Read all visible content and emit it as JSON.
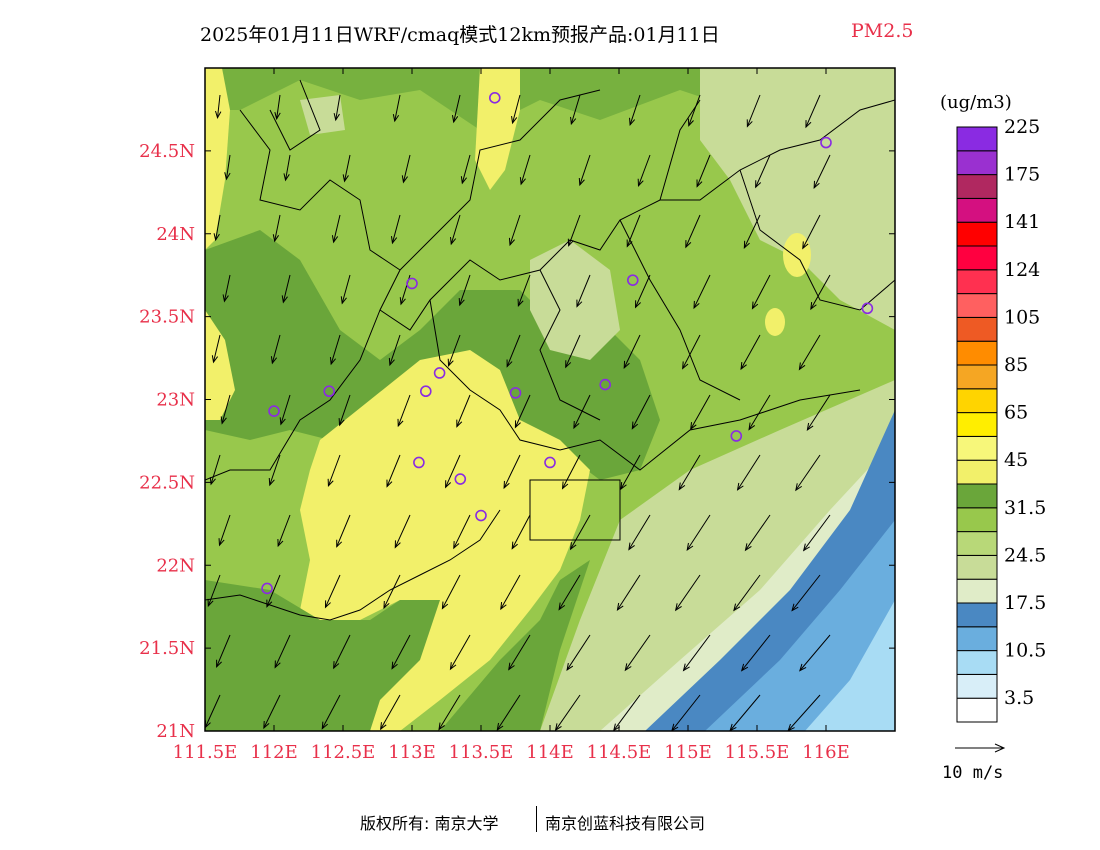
{
  "title": {
    "main": "2025年01月11日WRF/cmaq模式12km预报产品:01月11日",
    "pollutant": "PM2.5"
  },
  "map": {
    "lon_range": [
      111.5,
      116.5
    ],
    "lat_range": [
      21.0,
      25.0
    ],
    "x_ticks": [
      "111.5E",
      "112E",
      "112.5E",
      "113E",
      "113.5E",
      "114E",
      "114.5E",
      "115E",
      "115.5E",
      "116E"
    ],
    "y_ticks": [
      "21N",
      "21.5N",
      "22N",
      "22.5N",
      "23N",
      "23.5N",
      "24N",
      "24.5N"
    ],
    "tick_color": "#e8304a",
    "city_markers": [
      [
        113.6,
        24.82
      ],
      [
        116.0,
        24.55
      ],
      [
        113.0,
        23.7
      ],
      [
        114.6,
        23.72
      ],
      [
        116.3,
        23.55
      ],
      [
        113.2,
        23.16
      ],
      [
        112.4,
        23.05
      ],
      [
        113.1,
        23.05
      ],
      [
        113.75,
        23.04
      ],
      [
        114.4,
        23.09
      ],
      [
        112.0,
        22.93
      ],
      [
        115.35,
        22.78
      ],
      [
        113.05,
        22.62
      ],
      [
        113.35,
        22.52
      ],
      [
        114.0,
        22.62
      ],
      [
        113.5,
        22.3
      ],
      [
        111.95,
        21.86
      ]
    ],
    "marker_color": "#8a2be2"
  },
  "legend": {
    "unit": "(ug/m3)",
    "colors": [
      "#ffffff",
      "#d8eef8",
      "#a8dcf4",
      "#6aaede",
      "#4a88c2",
      "#e0ecc8",
      "#c8dc98",
      "#b8d878",
      "#98c84c",
      "#6aa63a",
      "#f2f06a",
      "#f7f77a",
      "#ffee00",
      "#ffd400",
      "#f5a623",
      "#ff8c00",
      "#ee5a24",
      "#ff6060",
      "#ff3050",
      "#ff0040",
      "#ff0000",
      "#d41080",
      "#b02860",
      "#9a30d0",
      "#8a2be2"
    ],
    "labels": [
      "3.5",
      "10.5",
      "17.5",
      "24.5",
      "31.5",
      "45",
      "65",
      "85",
      "105",
      "124",
      "141",
      "175",
      "225"
    ]
  },
  "wind": {
    "ref_label": "10 m/s"
  },
  "footer": {
    "copyright": "版权所有: 南京大学",
    "company": "南京创蓝科技有限公司"
  }
}
